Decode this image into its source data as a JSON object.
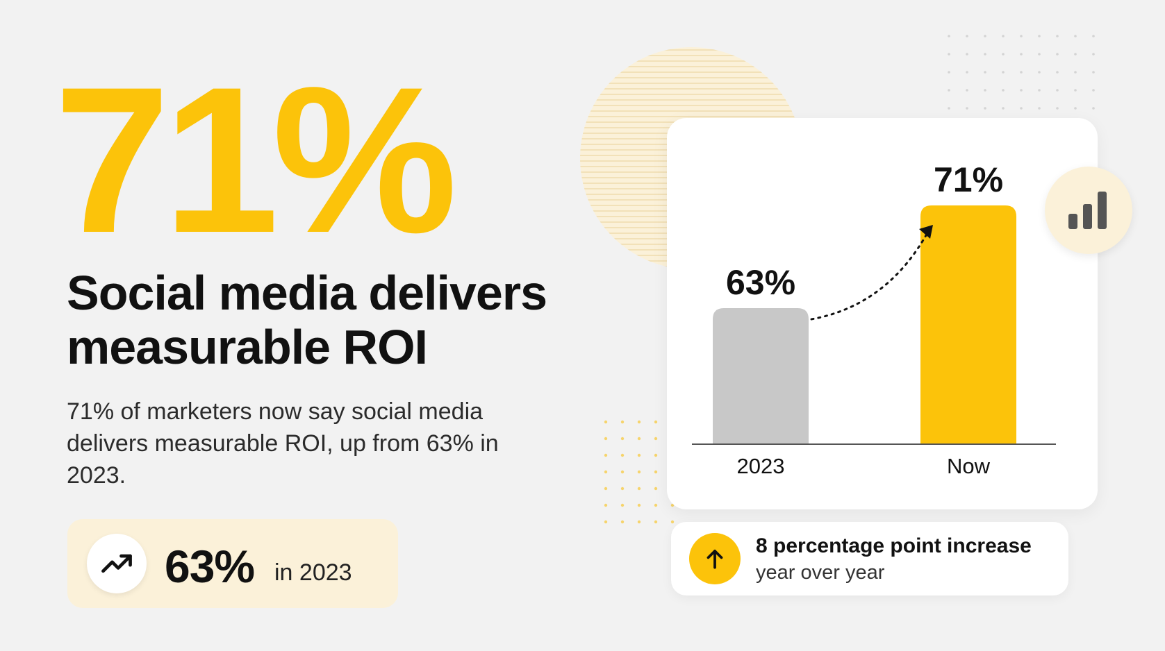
{
  "hero": {
    "big_stat": "71%",
    "headline": "Social media delivers measurable ROI",
    "body": "71% of marketers now say social media delivers measurable ROI, up from 63% in 2023."
  },
  "pill": {
    "icon": "trending-up-icon",
    "value": "63%",
    "caption": "in 2023"
  },
  "chart_data": {
    "type": "bar",
    "categories": [
      "2023",
      "Now"
    ],
    "values": [
      63,
      71
    ],
    "value_labels": [
      "63%",
      "71%"
    ],
    "ylim": [
      0,
      100
    ],
    "bar_colors": [
      "#c8c8c8",
      "#fcc30a"
    ],
    "annotation": "dotted arrow from 2023 bar to Now bar"
  },
  "badge": {
    "icon": "bar-chart-icon"
  },
  "note": {
    "icon": "arrow-up-icon",
    "title": "8 percentage point increase",
    "subtitle": "year over year"
  },
  "colors": {
    "accent": "#fcc30a",
    "accent_light": "#fbf1d9",
    "muted_bar": "#c8c8c8",
    "background": "#f2f2f2"
  }
}
